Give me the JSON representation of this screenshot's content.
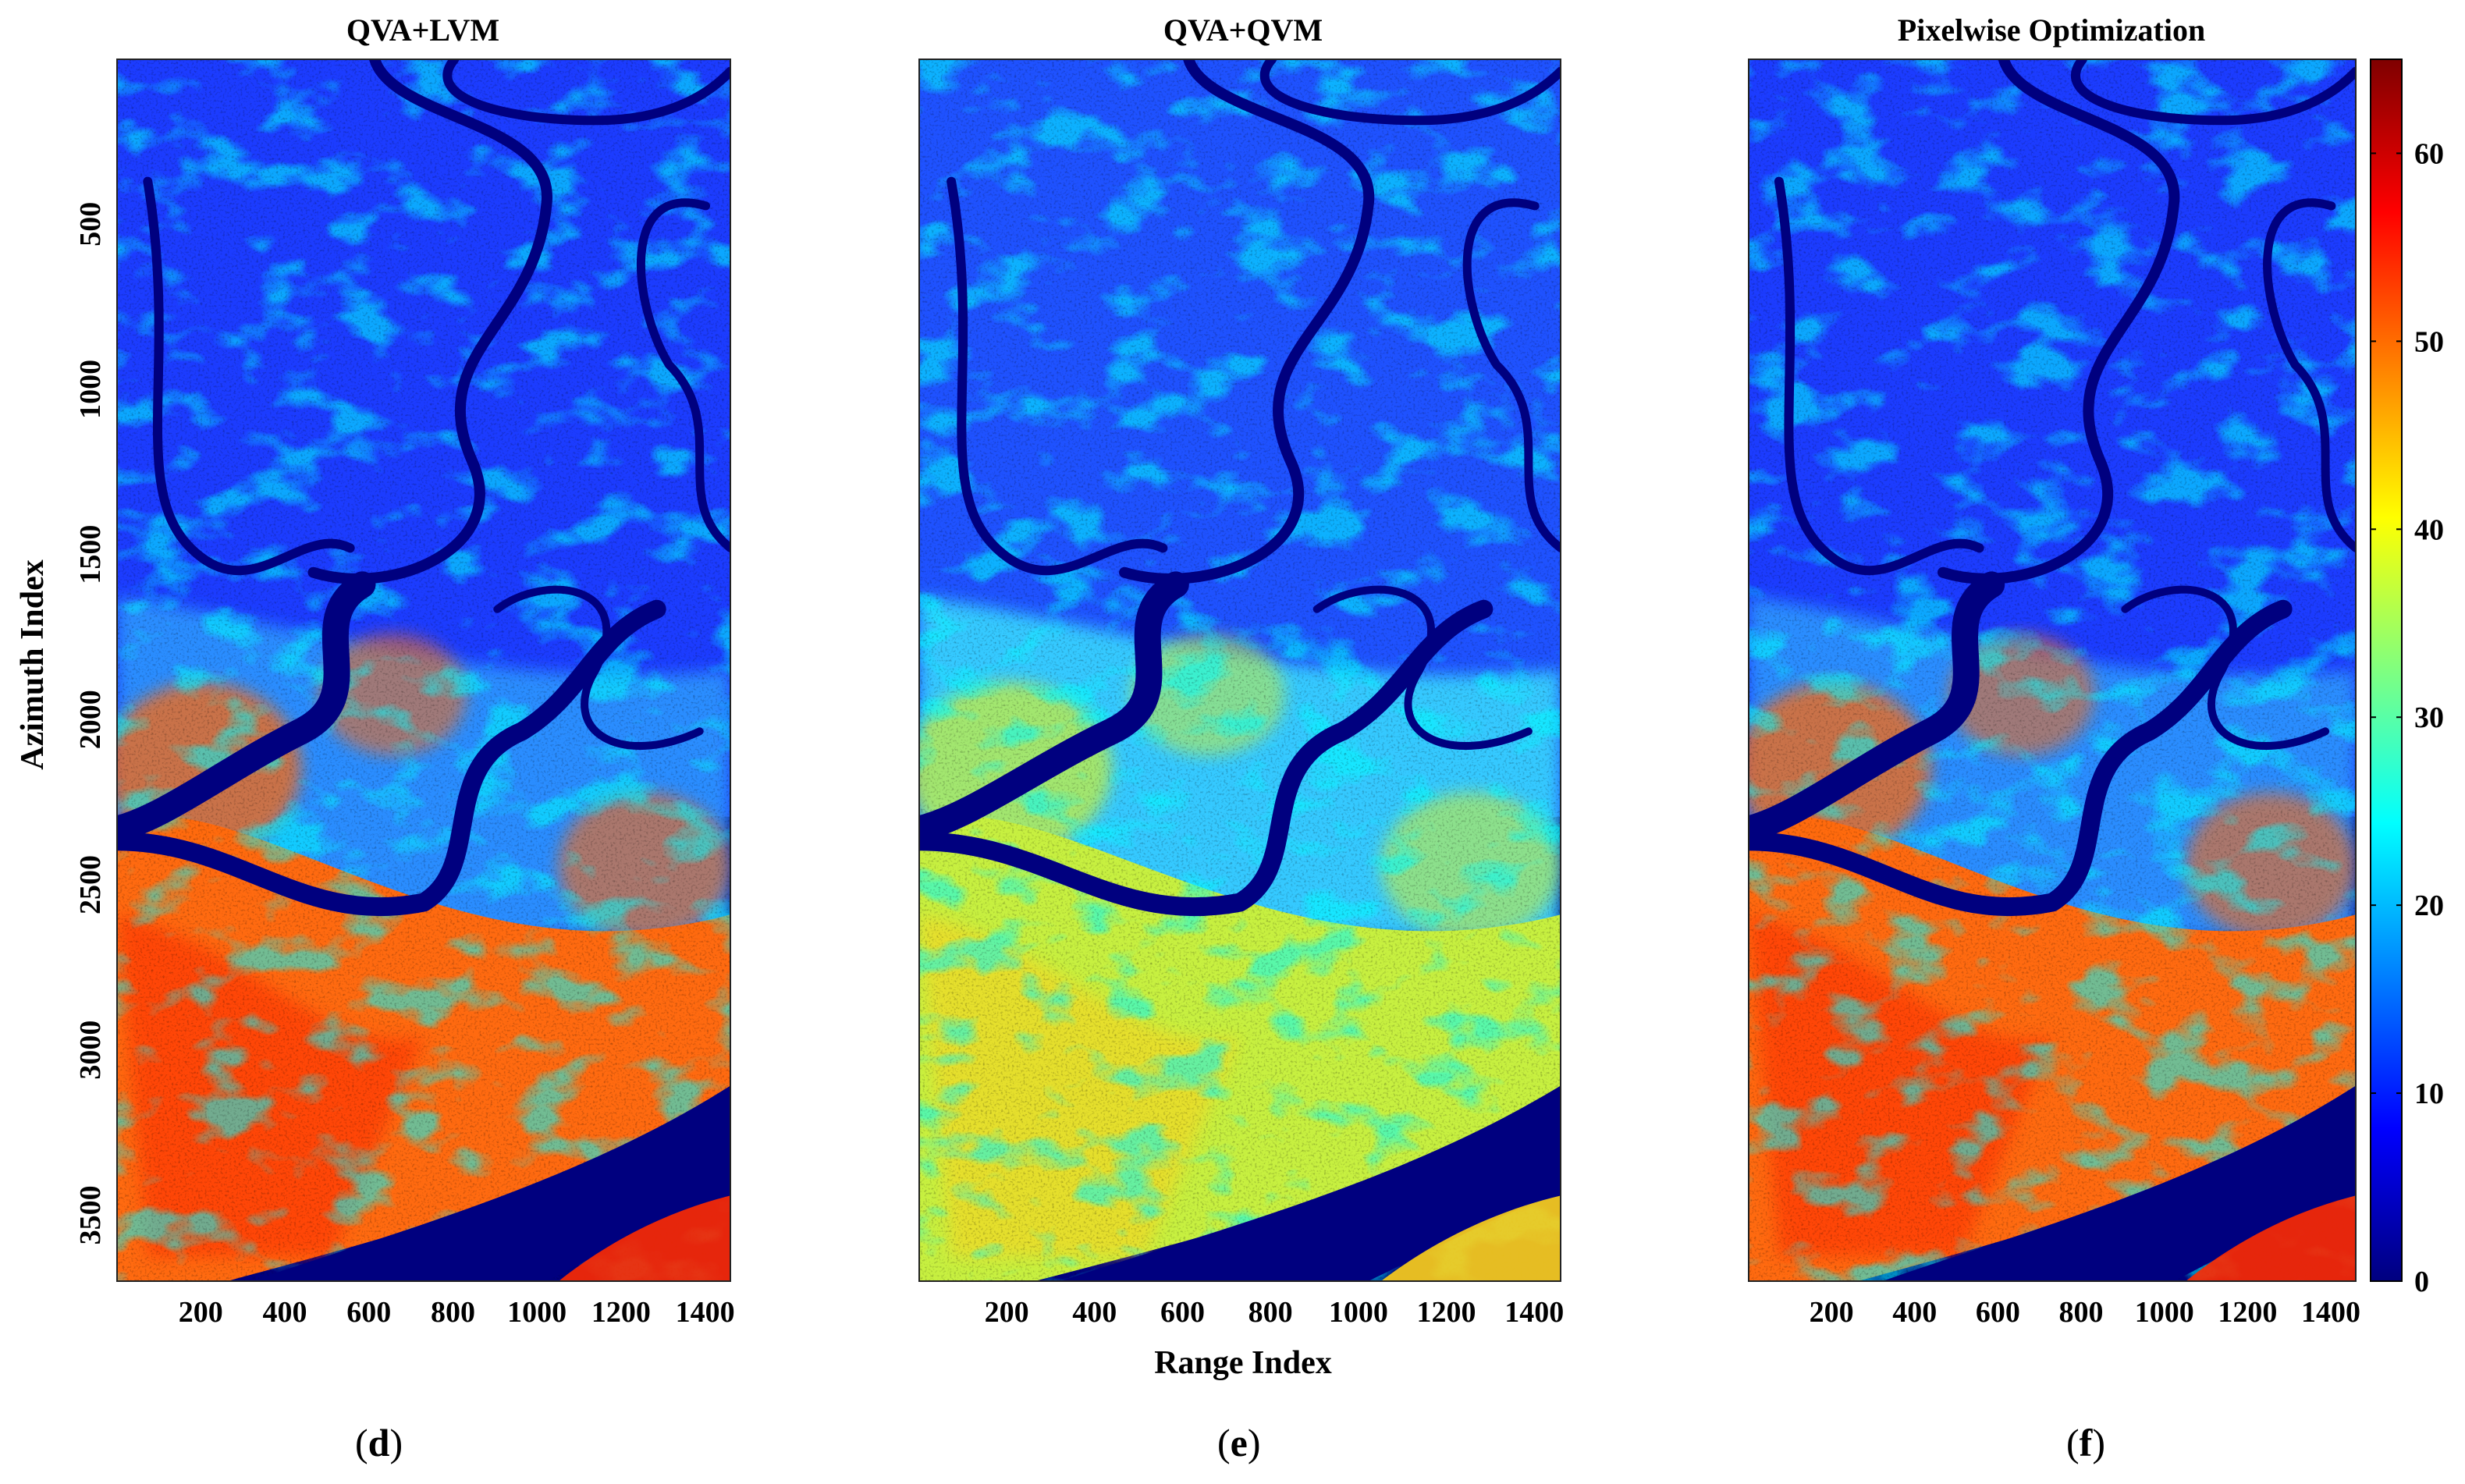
{
  "figure": {
    "panels": [
      {
        "title": "QVA+LVM",
        "label": "d",
        "variant": "lvm"
      },
      {
        "title": "QVA+QVM",
        "label": "e",
        "variant": "qvm"
      },
      {
        "title": "Pixelwise Optimization",
        "label": "f",
        "variant": "pix"
      }
    ],
    "ylabel": "Azimuth Index",
    "xlabel": "Range Index",
    "label_open": "(",
    "label_close": ")"
  },
  "chart_data": {
    "type": "heatmap",
    "panel_titles": [
      "QVA+LVM",
      "QVA+QVM",
      "Pixelwise Optimization"
    ],
    "x_axis": {
      "label": "Range Index",
      "ticks": [
        200,
        400,
        600,
        800,
        1000,
        1200,
        1400
      ],
      "range": [
        1,
        1460
      ]
    },
    "y_axis": {
      "label": "Azimuth Index",
      "ticks": [
        500,
        1000,
        1500,
        2000,
        2500,
        3000,
        3500
      ],
      "range": [
        1,
        3700
      ],
      "reversed": true
    },
    "colorbar": {
      "colormap": "jet",
      "ticks": [
        0,
        10,
        20,
        30,
        40,
        50,
        60
      ],
      "range": [
        0,
        65
      ]
    },
    "colors": {
      "jet_low": "#00007f",
      "jet_blue": "#0000ff",
      "jet_cyan": "#00ffff",
      "jet_yellow": "#ffff00",
      "jet_red": "#ff0000",
      "jet_high": "#7f0000",
      "river": "#00007f"
    },
    "grid": false
  }
}
